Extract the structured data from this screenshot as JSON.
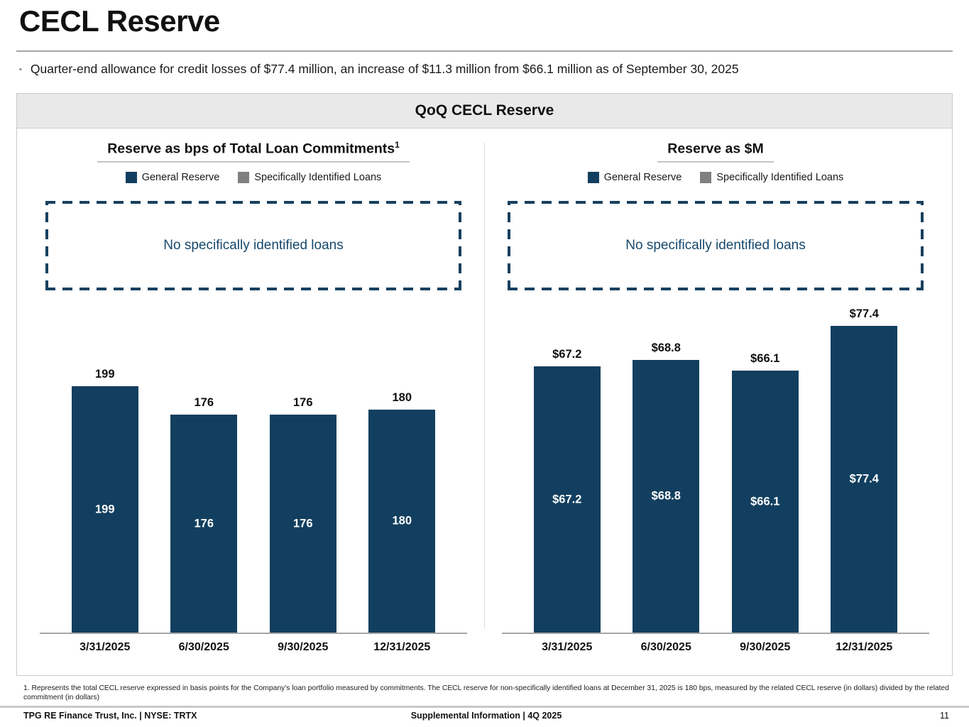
{
  "slide": {
    "title": "CECL Reserve",
    "bullet_glyph": "▪",
    "bullet": "Quarter-end allowance for credit losses of $77.4 million, an increase of $11.3 million from $66.1 million as of September 30, 2025",
    "panel_title": "QoQ CECL Reserve"
  },
  "colors": {
    "bar_navy": "#123f5f",
    "legend_gray": "#808080",
    "header_band": "#e9e9e9",
    "note_text": "#17486b"
  },
  "chart_data": [
    {
      "type": "bar",
      "title": "Reserve as bps of Total Loan Commitments",
      "title_superscript": "1",
      "legend": [
        "General Reserve",
        "Specifically Identified Loans"
      ],
      "note": "No specifically identified loans",
      "categories": [
        "3/31/2025",
        "6/30/2025",
        "9/30/2025",
        "12/31/2025"
      ],
      "series": [
        {
          "name": "General Reserve",
          "values": [
            199,
            176,
            176,
            180
          ]
        },
        {
          "name": "Specifically Identified Loans",
          "values": [
            0,
            0,
            0,
            0
          ]
        }
      ],
      "labels": [
        "199",
        "176",
        "176",
        "180"
      ],
      "unit": "bps",
      "ylim": [
        0,
        272
      ],
      "grid": false,
      "legend_position": "top"
    },
    {
      "type": "bar",
      "title": "Reserve as $M",
      "title_superscript": "",
      "legend": [
        "General Reserve",
        "Specifically Identified Loans"
      ],
      "note": "No specifically identified loans",
      "categories": [
        "3/31/2025",
        "6/30/2025",
        "9/30/2025",
        "12/31/2025"
      ],
      "series": [
        {
          "name": "General Reserve",
          "values": [
            67.2,
            68.8,
            66.1,
            77.4
          ]
        },
        {
          "name": "Specifically Identified Loans",
          "values": [
            0,
            0,
            0,
            0
          ]
        }
      ],
      "labels": [
        "$67.2",
        "$68.8",
        "$66.1",
        "$77.4"
      ],
      "unit": "$M",
      "ylim": [
        0,
        85
      ],
      "grid": false,
      "legend_position": "top"
    }
  ],
  "footnote": "1. Represents the total CECL reserve expressed in basis points for the Company’s  loan portfolio measured by commitments.  The CECL reserve for non-specifically identified loans at December 31, 2025 is 180 bps, measured by the related CECL reserve (in dollars) divided by the related commitment (in dollars)",
  "footer": {
    "left": "TPG RE Finance Trust, Inc. | NYSE: TRTX",
    "center": "Supplemental Information | 4Q 2025",
    "page": "11"
  }
}
